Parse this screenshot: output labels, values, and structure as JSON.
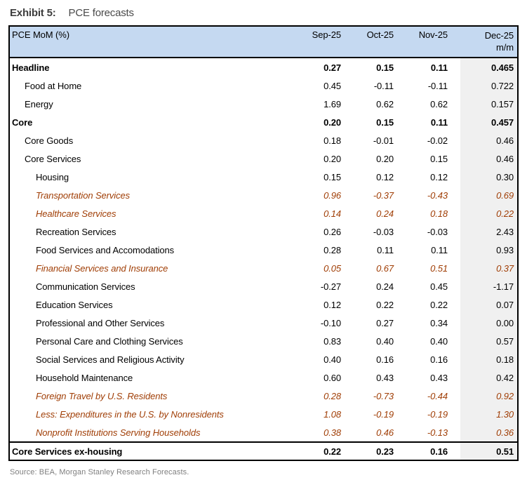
{
  "exhibit": {
    "label": "Exhibit 5:",
    "title": "PCE forecasts"
  },
  "source": "Source: BEA, Morgan Stanley Research Forecasts.",
  "colors": {
    "header_bg": "#c5d9f1",
    "dec_column_bg": "#f0f0f0",
    "forecast_text": "#a03e06",
    "border": "#000000"
  },
  "table": {
    "header_label": "PCE MoM (%)",
    "columns": [
      "Sep-25",
      "Oct-25",
      "Nov-25"
    ],
    "dec_col": {
      "month": "Dec-25",
      "sub": "m/m"
    },
    "rows": [
      {
        "label": "Headline",
        "level": 0,
        "style": "bold",
        "values": [
          "0.27",
          "0.15",
          "0.11",
          "0.465"
        ]
      },
      {
        "label": "Food at Home",
        "level": 1,
        "style": "normal",
        "values": [
          "0.45",
          "-0.11",
          "-0.11",
          "0.722"
        ]
      },
      {
        "label": "Energy",
        "level": 1,
        "style": "normal",
        "values": [
          "1.69",
          "0.62",
          "0.62",
          "0.157"
        ]
      },
      {
        "label": "Core",
        "level": 0,
        "style": "bold",
        "values": [
          "0.20",
          "0.15",
          "0.11",
          "0.457"
        ]
      },
      {
        "label": "Core Goods",
        "level": 1,
        "style": "normal",
        "values": [
          "0.18",
          "-0.01",
          "-0.02",
          "0.46"
        ]
      },
      {
        "label": "Core Services",
        "level": 1,
        "style": "normal",
        "values": [
          "0.20",
          "0.20",
          "0.15",
          "0.46"
        ]
      },
      {
        "label": "Housing",
        "level": 2,
        "style": "normal",
        "values": [
          "0.15",
          "0.12",
          "0.12",
          "0.30"
        ]
      },
      {
        "label": "Transportation Services",
        "level": 2,
        "style": "forecast",
        "values": [
          "0.96",
          "-0.37",
          "-0.43",
          "0.69"
        ]
      },
      {
        "label": "Healthcare Services",
        "level": 2,
        "style": "forecast",
        "values": [
          "0.14",
          "0.24",
          "0.18",
          "0.22"
        ]
      },
      {
        "label": "Recreation Services",
        "level": 2,
        "style": "normal",
        "values": [
          "0.26",
          "-0.03",
          "-0.03",
          "2.43"
        ]
      },
      {
        "label": "Food Services and Accomodations",
        "level": 2,
        "style": "normal",
        "values": [
          "0.28",
          "0.11",
          "0.11",
          "0.93"
        ]
      },
      {
        "label": "Financial Services and Insurance",
        "level": 2,
        "style": "forecast",
        "values": [
          "0.05",
          "0.67",
          "0.51",
          "0.37"
        ]
      },
      {
        "label": "Communication Services",
        "level": 2,
        "style": "normal",
        "values": [
          "-0.27",
          "0.24",
          "0.45",
          "-1.17"
        ]
      },
      {
        "label": "Education Services",
        "level": 2,
        "style": "normal",
        "values": [
          "0.12",
          "0.22",
          "0.22",
          "0.07"
        ]
      },
      {
        "label": "Professional and Other Services",
        "level": 2,
        "style": "normal",
        "values": [
          "-0.10",
          "0.27",
          "0.34",
          "0.00"
        ]
      },
      {
        "label": "Personal Care and Clothing Services",
        "level": 2,
        "style": "normal",
        "values": [
          "0.83",
          "0.40",
          "0.40",
          "0.57"
        ]
      },
      {
        "label": "Social Services and Religious Activity",
        "level": 2,
        "style": "normal",
        "values": [
          "0.40",
          "0.16",
          "0.16",
          "0.18"
        ]
      },
      {
        "label": "Household Maintenance",
        "level": 2,
        "style": "normal",
        "values": [
          "0.60",
          "0.43",
          "0.43",
          "0.42"
        ]
      },
      {
        "label": "Foreign Travel by U.S. Residents",
        "level": 2,
        "style": "forecast",
        "values": [
          "0.28",
          "-0.73",
          "-0.44",
          "0.92"
        ]
      },
      {
        "label": "Less: Expenditures in the U.S. by Nonresidents",
        "level": 2,
        "style": "forecast",
        "values": [
          "1.08",
          "-0.19",
          "-0.19",
          "1.30"
        ]
      },
      {
        "label": "Nonprofit Institutions Serving Households",
        "level": 2,
        "style": "forecast",
        "values": [
          "0.38",
          "0.46",
          "-0.13",
          "0.36"
        ]
      },
      {
        "label": "Core Services ex-housing",
        "level": 0,
        "style": "bold",
        "divider_top": true,
        "values": [
          "0.22",
          "0.23",
          "0.16",
          "0.51"
        ]
      }
    ]
  }
}
